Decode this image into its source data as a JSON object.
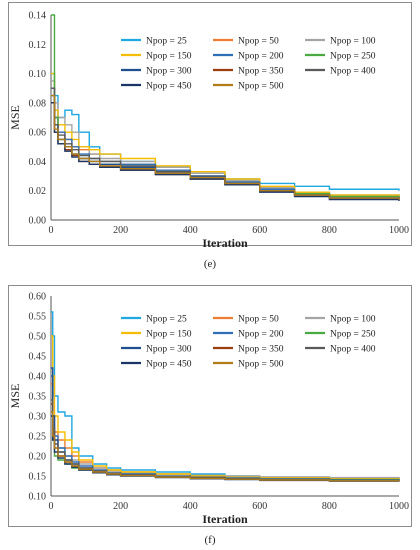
{
  "panels": [
    {
      "caption": "(e)"
    },
    {
      "caption": "(f)"
    }
  ],
  "chart_data": [
    {
      "type": "line",
      "xlabel": "Iteration",
      "ylabel": "MSE",
      "xlim": [
        0,
        1000
      ],
      "ylim": [
        0,
        0.14
      ],
      "xticks": [
        "0",
        "200",
        "400",
        "600",
        "800",
        "1000"
      ],
      "yticks": [
        "0.00",
        "0.02",
        "0.04",
        "0.06",
        "0.08",
        "0.10",
        "0.12",
        "0.14"
      ],
      "grid": false,
      "legend_position": "top-right",
      "series": [
        {
          "name": "Npop = 25",
          "color": "#1ea7e1",
          "x": [
            0,
            10,
            20,
            40,
            60,
            80,
            110,
            140,
            200,
            300,
            400,
            500,
            600,
            700,
            800,
            1000
          ],
          "y": [
            0.1,
            0.085,
            0.07,
            0.075,
            0.072,
            0.06,
            0.05,
            0.045,
            0.04,
            0.036,
            0.032,
            0.028,
            0.025,
            0.023,
            0.021,
            0.02
          ]
        },
        {
          "name": "Npop = 50",
          "color": "#ed7d31",
          "x": [
            0,
            10,
            20,
            40,
            60,
            80,
            110,
            140,
            200,
            300,
            400,
            500,
            600,
            700,
            800,
            1000
          ],
          "y": [
            0.09,
            0.07,
            0.06,
            0.055,
            0.05,
            0.048,
            0.045,
            0.04,
            0.038,
            0.034,
            0.03,
            0.026,
            0.022,
            0.019,
            0.017,
            0.016
          ]
        },
        {
          "name": "Npop = 100",
          "color": "#a5a5a5",
          "x": [
            0,
            10,
            20,
            40,
            60,
            80,
            110,
            140,
            200,
            300,
            400,
            500,
            600,
            700,
            800,
            1000
          ],
          "y": [
            0.095,
            0.08,
            0.07,
            0.065,
            0.06,
            0.05,
            0.045,
            0.042,
            0.04,
            0.036,
            0.032,
            0.027,
            0.022,
            0.019,
            0.017,
            0.016
          ]
        },
        {
          "name": "Npop = 150",
          "color": "#f5bd00",
          "x": [
            0,
            10,
            20,
            40,
            60,
            80,
            110,
            140,
            200,
            300,
            400,
            500,
            600,
            700,
            800,
            1000
          ],
          "y": [
            0.1,
            0.075,
            0.065,
            0.06,
            0.055,
            0.05,
            0.048,
            0.045,
            0.042,
            0.037,
            0.033,
            0.028,
            0.023,
            0.019,
            0.017,
            0.016
          ]
        },
        {
          "name": "Npop = 200",
          "color": "#2e6fb5",
          "x": [
            0,
            10,
            20,
            40,
            60,
            80,
            110,
            140,
            200,
            300,
            400,
            500,
            600,
            700,
            800,
            1000
          ],
          "y": [
            0.09,
            0.07,
            0.06,
            0.055,
            0.05,
            0.045,
            0.042,
            0.04,
            0.038,
            0.034,
            0.03,
            0.026,
            0.021,
            0.018,
            0.016,
            0.015
          ]
        },
        {
          "name": "Npop = 250",
          "color": "#4aaa42",
          "x": [
            0,
            10,
            20,
            40,
            60,
            80,
            110,
            140,
            200,
            300,
            400,
            500,
            600,
            700,
            800,
            1000
          ],
          "y": [
            0.15,
            0.07,
            0.055,
            0.05,
            0.045,
            0.042,
            0.04,
            0.038,
            0.036,
            0.032,
            0.028,
            0.024,
            0.02,
            0.018,
            0.016,
            0.015
          ]
        },
        {
          "name": "Npop = 300",
          "color": "#1f4f8f",
          "x": [
            0,
            10,
            20,
            40,
            60,
            80,
            110,
            140,
            200,
            300,
            400,
            500,
            600,
            700,
            800,
            1000
          ],
          "y": [
            0.085,
            0.065,
            0.055,
            0.05,
            0.045,
            0.042,
            0.04,
            0.038,
            0.036,
            0.033,
            0.03,
            0.025,
            0.02,
            0.017,
            0.015,
            0.014
          ]
        },
        {
          "name": "Npop = 350",
          "color": "#9c3d0f",
          "x": [
            0,
            10,
            20,
            40,
            60,
            80,
            110,
            140,
            200,
            300,
            400,
            500,
            600,
            700,
            800,
            1000
          ],
          "y": [
            0.08,
            0.06,
            0.052,
            0.048,
            0.044,
            0.04,
            0.038,
            0.036,
            0.034,
            0.031,
            0.028,
            0.024,
            0.02,
            0.017,
            0.015,
            0.014
          ]
        },
        {
          "name": "Npop = 400",
          "color": "#5a5a5a",
          "x": [
            0,
            10,
            20,
            40,
            60,
            80,
            110,
            140,
            200,
            300,
            400,
            500,
            600,
            700,
            800,
            1000
          ],
          "y": [
            0.09,
            0.065,
            0.058,
            0.052,
            0.048,
            0.044,
            0.042,
            0.04,
            0.037,
            0.033,
            0.029,
            0.025,
            0.02,
            0.017,
            0.015,
            0.014
          ]
        },
        {
          "name": "Npop = 450",
          "color": "#1a3566",
          "x": [
            0,
            10,
            20,
            40,
            60,
            80,
            110,
            140,
            200,
            300,
            400,
            500,
            600,
            700,
            800,
            1000
          ],
          "y": [
            0.08,
            0.06,
            0.052,
            0.047,
            0.043,
            0.04,
            0.038,
            0.036,
            0.034,
            0.031,
            0.028,
            0.024,
            0.019,
            0.016,
            0.014,
            0.013
          ]
        },
        {
          "name": "Npop = 500",
          "color": "#b07d1a",
          "x": [
            0,
            10,
            20,
            40,
            60,
            80,
            110,
            140,
            200,
            300,
            400,
            500,
            600,
            700,
            800,
            1000
          ],
          "y": [
            0.085,
            0.062,
            0.055,
            0.05,
            0.045,
            0.042,
            0.04,
            0.037,
            0.035,
            0.032,
            0.029,
            0.025,
            0.02,
            0.017,
            0.015,
            0.014
          ]
        }
      ]
    },
    {
      "type": "line",
      "xlabel": "Iteration",
      "ylabel": "MSE",
      "xlim": [
        0,
        1000
      ],
      "ylim": [
        0.1,
        0.6
      ],
      "xticks": [
        "0",
        "200",
        "400",
        "600",
        "800",
        "1000"
      ],
      "yticks": [
        "0.10",
        "0.15",
        "0.20",
        "0.25",
        "0.30",
        "0.35",
        "0.40",
        "0.45",
        "0.50",
        "0.55",
        "0.60"
      ],
      "grid": false,
      "legend_position": "top-right",
      "series": [
        {
          "name": "Npop = 25",
          "color": "#1ea7e1",
          "x": [
            0,
            5,
            10,
            20,
            40,
            60,
            80,
            120,
            160,
            200,
            300,
            400,
            500,
            600,
            800,
            1000
          ],
          "y": [
            0.56,
            0.5,
            0.35,
            0.31,
            0.3,
            0.22,
            0.2,
            0.18,
            0.17,
            0.165,
            0.16,
            0.155,
            0.15,
            0.147,
            0.145,
            0.143
          ]
        },
        {
          "name": "Npop = 50",
          "color": "#ed7d31",
          "x": [
            0,
            5,
            10,
            20,
            40,
            60,
            80,
            120,
            160,
            200,
            300,
            400,
            500,
            600,
            800,
            1000
          ],
          "y": [
            0.38,
            0.3,
            0.26,
            0.24,
            0.22,
            0.2,
            0.185,
            0.17,
            0.165,
            0.16,
            0.155,
            0.15,
            0.147,
            0.145,
            0.143,
            0.141
          ]
        },
        {
          "name": "Npop = 100",
          "color": "#a5a5a5",
          "x": [
            0,
            5,
            10,
            20,
            40,
            60,
            80,
            120,
            160,
            200,
            300,
            400,
            500,
            600,
            800,
            1000
          ],
          "y": [
            0.35,
            0.28,
            0.24,
            0.22,
            0.2,
            0.19,
            0.18,
            0.17,
            0.162,
            0.158,
            0.155,
            0.152,
            0.15,
            0.148,
            0.146,
            0.144
          ]
        },
        {
          "name": "Npop = 150",
          "color": "#f5bd00",
          "x": [
            0,
            5,
            10,
            20,
            40,
            60,
            80,
            120,
            160,
            200,
            300,
            400,
            500,
            600,
            800,
            1000
          ],
          "y": [
            0.5,
            0.4,
            0.3,
            0.26,
            0.24,
            0.21,
            0.19,
            0.175,
            0.165,
            0.16,
            0.155,
            0.15,
            0.147,
            0.145,
            0.143,
            0.141
          ]
        },
        {
          "name": "Npop = 200",
          "color": "#2e6fb5",
          "x": [
            0,
            5,
            10,
            20,
            40,
            60,
            80,
            120,
            160,
            200,
            300,
            400,
            500,
            600,
            800,
            1000
          ],
          "y": [
            0.4,
            0.3,
            0.25,
            0.22,
            0.2,
            0.185,
            0.175,
            0.165,
            0.158,
            0.155,
            0.15,
            0.147,
            0.145,
            0.143,
            0.141,
            0.14
          ]
        },
        {
          "name": "Npop = 250",
          "color": "#4aaa42",
          "x": [
            0,
            5,
            10,
            20,
            40,
            60,
            80,
            120,
            160,
            200,
            300,
            400,
            500,
            600,
            800,
            1000
          ],
          "y": [
            0.3,
            0.24,
            0.2,
            0.19,
            0.18,
            0.17,
            0.165,
            0.16,
            0.155,
            0.152,
            0.148,
            0.145,
            0.143,
            0.141,
            0.14,
            0.139
          ]
        },
        {
          "name": "Npop = 300",
          "color": "#1f4f8f",
          "x": [
            0,
            5,
            10,
            20,
            40,
            60,
            80,
            120,
            160,
            200,
            300,
            400,
            500,
            600,
            800,
            1000
          ],
          "y": [
            0.42,
            0.3,
            0.24,
            0.21,
            0.19,
            0.18,
            0.17,
            0.162,
            0.156,
            0.152,
            0.148,
            0.145,
            0.143,
            0.141,
            0.139,
            0.138
          ]
        },
        {
          "name": "Npop = 350",
          "color": "#9c3d0f",
          "x": [
            0,
            5,
            10,
            20,
            40,
            60,
            80,
            120,
            160,
            200,
            300,
            400,
            500,
            600,
            800,
            1000
          ],
          "y": [
            0.33,
            0.26,
            0.22,
            0.2,
            0.185,
            0.175,
            0.168,
            0.16,
            0.155,
            0.152,
            0.148,
            0.145,
            0.142,
            0.14,
            0.138,
            0.137
          ]
        },
        {
          "name": "Npop = 400",
          "color": "#5a5a5a",
          "x": [
            0,
            5,
            10,
            20,
            40,
            60,
            80,
            120,
            160,
            200,
            300,
            400,
            500,
            600,
            800,
            1000
          ],
          "y": [
            0.34,
            0.27,
            0.23,
            0.21,
            0.19,
            0.18,
            0.17,
            0.163,
            0.157,
            0.153,
            0.149,
            0.146,
            0.143,
            0.141,
            0.139,
            0.138
          ]
        },
        {
          "name": "Npop = 450",
          "color": "#1a3566",
          "x": [
            0,
            5,
            10,
            20,
            40,
            60,
            80,
            120,
            160,
            200,
            300,
            400,
            500,
            600,
            800,
            1000
          ],
          "y": [
            0.3,
            0.24,
            0.21,
            0.195,
            0.18,
            0.172,
            0.165,
            0.158,
            0.153,
            0.15,
            0.146,
            0.143,
            0.141,
            0.139,
            0.137,
            0.136
          ]
        },
        {
          "name": "Npop = 500",
          "color": "#b07d1a",
          "x": [
            0,
            5,
            10,
            20,
            40,
            60,
            80,
            120,
            160,
            200,
            300,
            400,
            500,
            600,
            800,
            1000
          ],
          "y": [
            0.31,
            0.25,
            0.22,
            0.2,
            0.185,
            0.175,
            0.167,
            0.16,
            0.155,
            0.151,
            0.147,
            0.144,
            0.142,
            0.14,
            0.138,
            0.137
          ]
        }
      ]
    }
  ]
}
